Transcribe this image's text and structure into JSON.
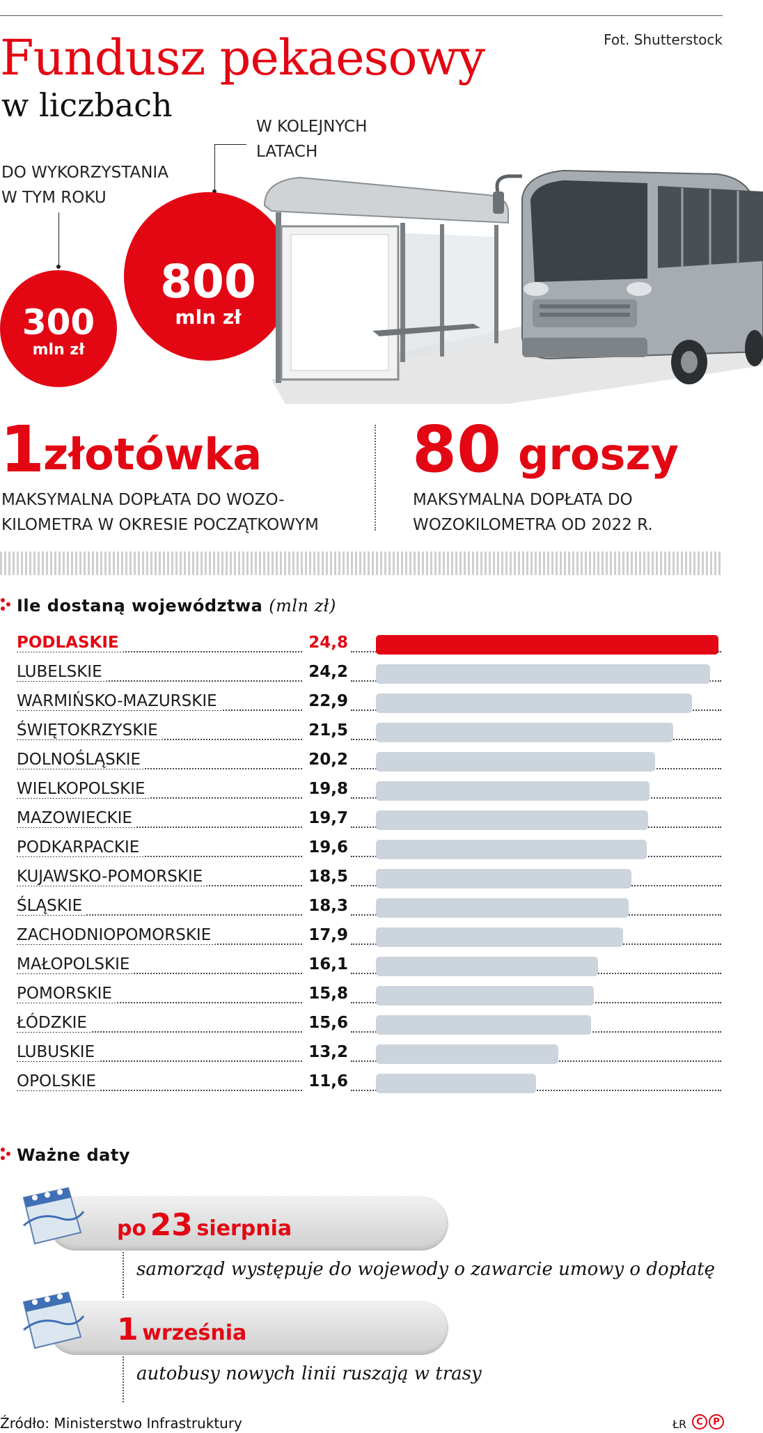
{
  "header": {
    "credit": "Fot. Shutterstock",
    "title": "Fundusz pekaesowy",
    "subtitle": "w liczbach"
  },
  "amounts": {
    "this_year": {
      "label_1": "DO WYKORZYSTANIA",
      "label_2": "W TYM ROKU",
      "value": "300",
      "unit": "mln zł"
    },
    "next_years": {
      "label_1": "W KOLEJNYCH",
      "label_2": "LATACH",
      "value": "800",
      "unit": "mln zł"
    }
  },
  "stats": {
    "left": {
      "number": "1",
      "word": "złotówka",
      "caption_1": "MAKSYMALNA DOPŁATA DO WOZO-",
      "caption_2": "KILOMETRA W OKRESIE POCZĄTKOWYM"
    },
    "right": {
      "number": "80",
      "word": "groszy",
      "caption_1": "MAKSYMALNA DOPŁATA DO",
      "caption_2": "WOZOKILOMETRA OD 2022 R."
    }
  },
  "chart_section": {
    "title": "Ile dostaną województwa",
    "unit": "(mln zł)"
  },
  "chart_data": {
    "type": "bar",
    "orientation": "horizontal",
    "title": "Ile dostaną województwa",
    "unit": "(mln zł)",
    "highlight_color": "#e30613",
    "bar_color": "#ccd4dd",
    "xlim": [
      0,
      25
    ],
    "categories": [
      "PODLASKIE",
      "LUBELSKIE",
      "WARMIŃSKO-MAZURSKIE",
      "ŚWIĘTOKRZYSKIE",
      "DOLNOŚLĄSKIE",
      "WIELKOPOLSKIE",
      "MAZOWIECKIE",
      "PODKARPACKIE",
      "KUJAWSKO-POMORSKIE",
      "ŚLĄSKIE",
      "ZACHODNIOPOMORSKIE",
      "MAŁOPOLSKIE",
      "POMORSKIE",
      "ŁÓDZKIE",
      "LUBUSKIE",
      "OPOLSKIE"
    ],
    "values": [
      24.8,
      24.2,
      22.9,
      21.5,
      20.2,
      19.8,
      19.7,
      19.6,
      18.5,
      18.3,
      17.9,
      16.1,
      15.8,
      15.6,
      13.2,
      11.6
    ],
    "value_labels": [
      "24,8",
      "24,2",
      "22,9",
      "21,5",
      "20,2",
      "19,8",
      "19,7",
      "19,6",
      "18,5",
      "18,3",
      "17,9",
      "16,1",
      "15,8",
      "15,6",
      "13,2",
      "11,6"
    ],
    "highlight_index": 0
  },
  "dates_section": {
    "title": "Ważne daty",
    "items": [
      {
        "prefix": "po",
        "day": "23",
        "month": "sierpnia",
        "description": "samorząd występuje do wojewody o zawarcie umowy o dopłatę"
      },
      {
        "prefix": "",
        "day": "1",
        "month": "września",
        "description": "autobusy nowych linii ruszają w trasy"
      }
    ]
  },
  "footer": {
    "source": "Źródło: Ministerstwo Infrastruktury",
    "author": "ŁR",
    "logo_text": "CP"
  },
  "colors": {
    "accent": "#e30613",
    "bar": "#ccd4dd"
  }
}
